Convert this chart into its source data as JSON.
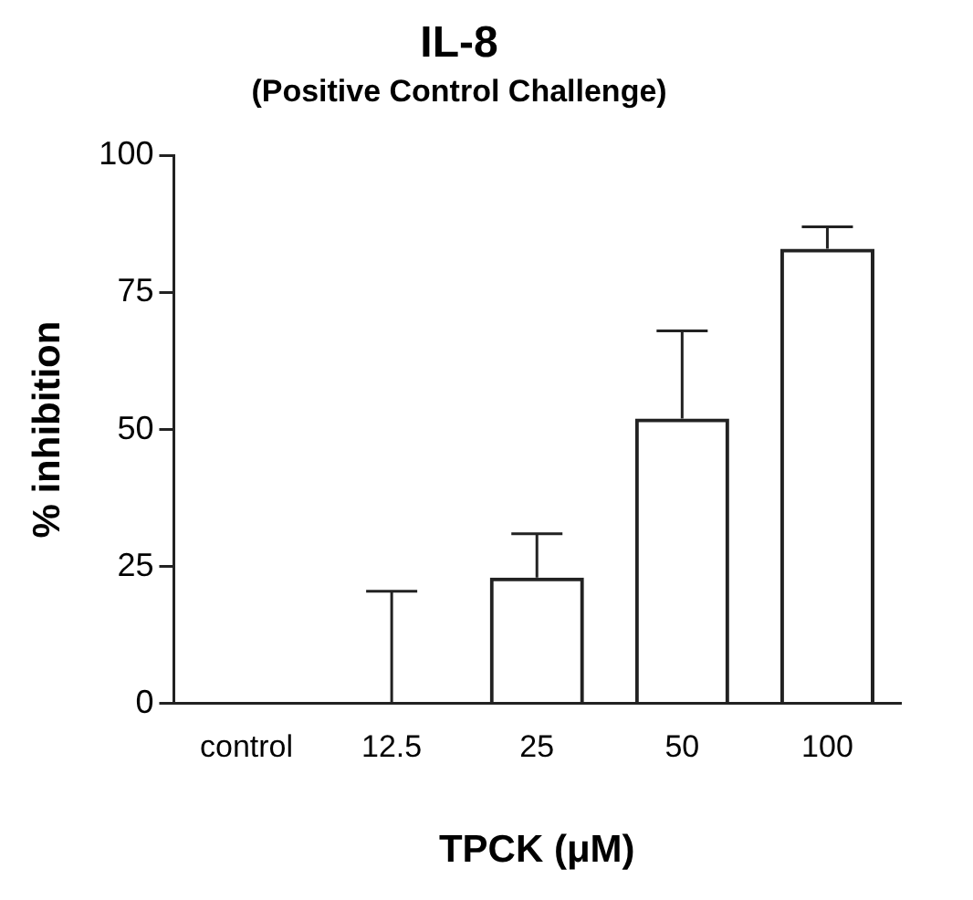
{
  "chart_data": {
    "type": "bar",
    "title": "IL-8",
    "subtitle": "(Positive Control Challenge)",
    "xlabel": "TPCK (μM)",
    "ylabel": "% inhibition",
    "categories": [
      "control",
      "12.5",
      "25",
      "50",
      "100"
    ],
    "values": [
      0,
      0,
      23,
      52,
      83
    ],
    "errors": [
      null,
      [
        0,
        20.5
      ],
      [
        23,
        31
      ],
      [
        52,
        68
      ],
      [
        83,
        87
      ]
    ],
    "color": "#222222",
    "ylim": [
      0,
      100
    ],
    "yticks": [
      0,
      25,
      50,
      75,
      100
    ],
    "grid": false,
    "legend": false
  }
}
